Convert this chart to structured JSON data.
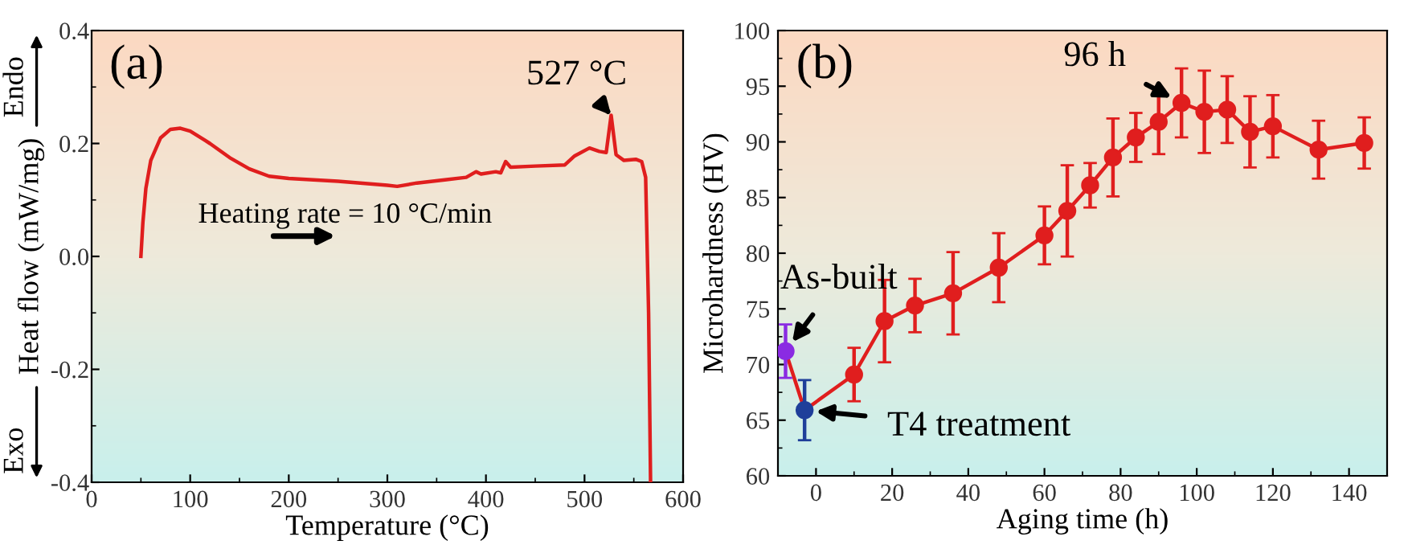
{
  "chart_data": [
    {
      "type": "line",
      "xlabel": "Temperature (°C)",
      "ylabel": "Heat flow (mW/mg)",
      "xlim": [
        0,
        600
      ],
      "ylim": [
        -0.4,
        0.4
      ],
      "xticks": [
        0,
        100,
        200,
        300,
        400,
        500,
        600
      ],
      "yticks": [
        {
          "value": -0.4,
          "label": "-0.4"
        },
        {
          "value": -0.2,
          "label": "-0.2"
        },
        {
          "value": 0.0,
          "label": "0.0"
        },
        {
          "value": 0.2,
          "label": "0.2"
        },
        {
          "value": 0.4,
          "label": "0.4"
        }
      ],
      "grid": false,
      "legend": false,
      "marker": "none",
      "line_style": "solid",
      "series": [
        {
          "color": "#e01e1e",
          "x": [
            50,
            52,
            55,
            60,
            70,
            80,
            90,
            100,
            120,
            140,
            160,
            180,
            200,
            250,
            300,
            310,
            330,
            360,
            380,
            390,
            395,
            410,
            415,
            420,
            425,
            450,
            480,
            490,
            505,
            515,
            522,
            527,
            532,
            540,
            552,
            558,
            562,
            565,
            567
          ],
          "values": [
            0.0,
            0.06,
            0.12,
            0.17,
            0.21,
            0.225,
            0.227,
            0.222,
            0.2,
            0.175,
            0.155,
            0.142,
            0.138,
            0.133,
            0.126,
            0.124,
            0.13,
            0.136,
            0.14,
            0.15,
            0.146,
            0.15,
            0.148,
            0.168,
            0.158,
            0.16,
            0.162,
            0.178,
            0.192,
            0.186,
            0.184,
            0.25,
            0.18,
            0.17,
            0.172,
            0.168,
            0.14,
            -0.1,
            -0.4
          ]
        }
      ],
      "annotations": [
        "(a)",
        "Endo",
        "Exo",
        "Heating rate = 10 °C/min",
        {
          "text": "527 °C",
          "x": 527,
          "y": 0.25
        }
      ]
    },
    {
      "type": "line",
      "xlabel": "Aging time (h)",
      "ylabel": "Microhardness (HV)",
      "xlim": [
        -10,
        150
      ],
      "ylim": [
        60,
        100
      ],
      "xticks": [
        0,
        20,
        40,
        60,
        80,
        100,
        120,
        140
      ],
      "yticks": [
        60,
        65,
        70,
        75,
        80,
        85,
        90,
        95,
        100
      ],
      "grid": false,
      "legend": false,
      "marker": "circle",
      "line_style": "solid",
      "series": [
        {
          "color": "#e01e1e",
          "colors": [
            "#8a2be2",
            "#1f3f9a",
            "#e01e1e",
            "#e01e1e",
            "#e01e1e",
            "#e01e1e",
            "#e01e1e",
            "#e01e1e",
            "#e01e1e",
            "#e01e1e",
            "#e01e1e",
            "#e01e1e",
            "#e01e1e",
            "#e01e1e",
            "#e01e1e",
            "#e01e1e",
            "#e01e1e",
            "#e01e1e",
            "#e01e1e",
            "#e01e1e"
          ],
          "x": [
            -8,
            -3,
            10,
            18,
            26,
            36,
            48,
            60,
            66,
            72,
            78,
            84,
            90,
            96,
            102,
            108,
            114,
            120,
            132,
            144
          ],
          "values": [
            71.2,
            65.9,
            69.1,
            73.9,
            75.3,
            76.4,
            78.7,
            81.6,
            83.8,
            86.1,
            88.6,
            90.4,
            91.8,
            93.5,
            92.7,
            92.9,
            90.9,
            91.4,
            89.3,
            89.9
          ],
          "errors": [
            2.4,
            2.7,
            2.4,
            3.7,
            2.4,
            3.7,
            3.1,
            2.6,
            4.1,
            2.0,
            3.5,
            2.2,
            2.9,
            3.1,
            3.7,
            3.0,
            3.2,
            2.8,
            2.6,
            2.3
          ]
        }
      ],
      "annotations": [
        "(b)",
        {
          "text": "96 h",
          "x": 96,
          "y": 93.5
        },
        {
          "text": "As-built",
          "x": -8,
          "y": 71.2
        },
        {
          "text": "T4 treatment",
          "x": -3,
          "y": 65.9
        }
      ]
    }
  ]
}
